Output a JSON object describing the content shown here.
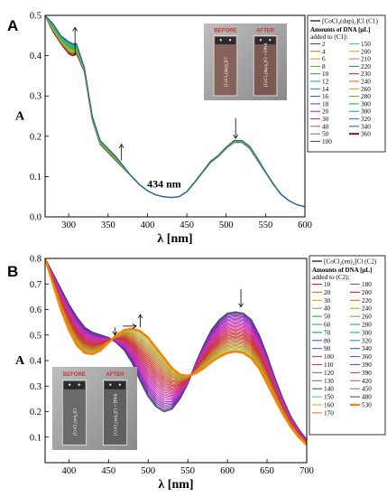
{
  "chart_data": [
    {
      "panel_label": "A",
      "type": "line",
      "xlabel": "λ [nm]",
      "ylabel": "A",
      "xlim": [
        270,
        600
      ],
      "ylim": [
        0,
        0.5
      ],
      "xticks": [
        300,
        350,
        400,
        450,
        500,
        550,
        600
      ],
      "yticks": [
        0.0,
        0.1,
        0.2,
        0.3,
        0.4,
        0.5
      ],
      "grid": false,
      "legend_placement": "right",
      "legend_compound": "[CoCl₂(dap)₂]Cl (C1)",
      "legend_heading": "Amounts of DNA [μL]",
      "legend_subheading": "added to (C1):",
      "legend_amounts": [
        "2",
        "4",
        "6",
        "8",
        "10",
        "12",
        "14",
        "16",
        "18",
        "20",
        "30",
        "40",
        "50",
        "100",
        "150",
        "200",
        "210",
        "220",
        "230",
        "240",
        "260",
        "280",
        "300",
        "300",
        "320",
        "340",
        "360"
      ],
      "annotations": [
        {
          "text": "434 nm",
          "x": 434,
          "y": 0.05
        }
      ],
      "arrows": [
        {
          "x": 308,
          "y_from": 0.4,
          "y_to": 0.47
        },
        {
          "x": 367,
          "y_from": 0.14,
          "y_to": 0.18
        },
        {
          "x": 512,
          "y_from": 0.245,
          "y_to": 0.195
        }
      ],
      "inset": {
        "before_label": "BEFORE",
        "after_label": "AFTER",
        "vial1_text": "[CoCl₂(dap)₂]Cl",
        "vial2_text": "[CoCl₂(dap)₂]Cl + DNA"
      },
      "x": [
        270,
        280,
        290,
        300,
        305,
        310,
        320,
        330,
        340,
        350,
        360,
        370,
        380,
        390,
        400,
        410,
        420,
        430,
        440,
        450,
        460,
        470,
        480,
        490,
        500,
        510,
        520,
        530,
        540,
        550,
        560,
        570,
        580,
        590,
        600
      ],
      "series": [
        {
          "values": [
            0.5,
            0.46,
            0.43,
            0.405,
            0.4,
            0.405,
            0.36,
            0.24,
            0.18,
            0.16,
            0.14,
            0.12,
            0.1,
            0.08,
            0.065,
            0.055,
            0.05,
            0.048,
            0.05,
            0.062,
            0.085,
            0.11,
            0.135,
            0.15,
            0.17,
            0.185,
            0.185,
            0.17,
            0.14,
            0.11,
            0.08,
            0.055,
            0.04,
            0.03,
            0.025
          ]
        },
        {
          "values": [
            0.5,
            0.48,
            0.45,
            0.435,
            0.43,
            0.43,
            0.37,
            0.25,
            0.19,
            0.17,
            0.15,
            0.125,
            0.1,
            0.08,
            0.065,
            0.055,
            0.05,
            0.048,
            0.05,
            0.063,
            0.087,
            0.112,
            0.138,
            0.153,
            0.173,
            0.19,
            0.19,
            0.175,
            0.145,
            0.112,
            0.082,
            0.056,
            0.04,
            0.03,
            0.025
          ]
        }
      ]
    },
    {
      "panel_label": "B",
      "type": "line",
      "xlabel": "λ [nm]",
      "ylabel": "A",
      "xlim": [
        370,
        700
      ],
      "ylim": [
        0,
        0.8
      ],
      "xticks": [
        400,
        450,
        500,
        550,
        600,
        650,
        700
      ],
      "yticks": [
        0.1,
        0.2,
        0.3,
        0.4,
        0.5,
        0.6,
        0.7,
        0.8
      ],
      "grid": false,
      "legend_placement": "right",
      "legend_compound": "[CoCl₂(en)₂]Cl (C2)",
      "legend_heading": "Amounts of DNA [μL]",
      "legend_subheading": "added to (C2):",
      "legend_amounts": [
        "10",
        "20",
        "30",
        "40",
        "50",
        "60",
        "70",
        "80",
        "90",
        "100",
        "110",
        "120",
        "130",
        "140",
        "150",
        "160",
        "170",
        "180",
        "200",
        "220",
        "240",
        "260",
        "280",
        "300",
        "320",
        "340",
        "360",
        "390",
        "390",
        "420",
        "450",
        "480",
        "530"
      ],
      "arrows": [
        {
          "x": 458,
          "y_from": 0.53,
          "y_to": 0.5
        },
        {
          "x": 490,
          "y_from": 0.53,
          "y_to": 0.58
        },
        {
          "x": 617,
          "y_from": 0.68,
          "y_to": 0.61
        }
      ],
      "inset": {
        "before_label": "BEFORE",
        "after_label": "AFTER",
        "vial1_text": "[CoCl₂(en)₂]Cl",
        "vial2_text": "[CoCl₂(en)₂]Cl + DNA"
      },
      "x": [
        370,
        380,
        390,
        400,
        410,
        420,
        430,
        440,
        450,
        460,
        470,
        480,
        490,
        500,
        510,
        520,
        530,
        540,
        550,
        560,
        570,
        580,
        590,
        600,
        610,
        620,
        630,
        640,
        650,
        660,
        670,
        680,
        690,
        700
      ],
      "series": [
        {
          "values": [
            0.8,
            0.74,
            0.68,
            0.62,
            0.57,
            0.53,
            0.51,
            0.5,
            0.49,
            0.47,
            0.44,
            0.39,
            0.32,
            0.26,
            0.22,
            0.2,
            0.21,
            0.25,
            0.31,
            0.39,
            0.46,
            0.52,
            0.56,
            0.585,
            0.59,
            0.585,
            0.56,
            0.5,
            0.42,
            0.33,
            0.25,
            0.18,
            0.13,
            0.09
          ]
        },
        {
          "values": [
            0.8,
            0.7,
            0.6,
            0.52,
            0.46,
            0.43,
            0.425,
            0.44,
            0.47,
            0.5,
            0.52,
            0.525,
            0.515,
            0.49,
            0.45,
            0.41,
            0.37,
            0.345,
            0.34,
            0.35,
            0.37,
            0.395,
            0.415,
            0.43,
            0.435,
            0.43,
            0.41,
            0.37,
            0.31,
            0.25,
            0.19,
            0.14,
            0.1,
            0.07
          ]
        }
      ]
    }
  ],
  "colors": {
    "panelA_start": "#6a2020",
    "panelA_end": "#3a6a90",
    "panelB_start": "#4a3070",
    "panelB_end": "#ff8000",
    "legend_palette": [
      "#c02020",
      "#e06010",
      "#d0a000",
      "#80a020",
      "#20a040",
      "#10a090",
      "#1080c0",
      "#2050c0",
      "#6040b0",
      "#a030a0",
      "#d03070",
      "#a06040",
      "#707070",
      "#305030",
      "#50b0d0",
      "#b0b020",
      "#d07050",
      "#4070a0"
    ]
  }
}
